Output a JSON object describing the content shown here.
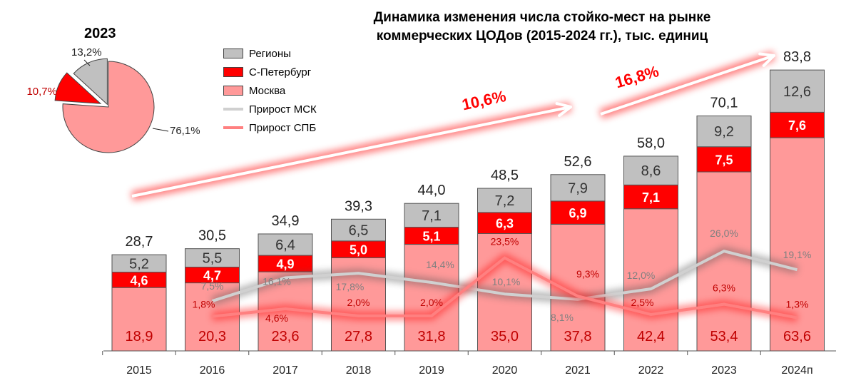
{
  "chart_data": [
    {
      "type": "bar",
      "stacked": true,
      "title": "Динамика изменения числа стойко-мест на рынке коммерческих ЦОДов (2015-2024 гг.), тыс. единиц",
      "categories": [
        "2015",
        "2016",
        "2017",
        "2018",
        "2019",
        "2020",
        "2021",
        "2022",
        "2023",
        "2024п"
      ],
      "series": [
        {
          "name": "Москва",
          "color": "#ff9999",
          "values": [
            18.9,
            20.3,
            23.6,
            27.8,
            31.8,
            35.0,
            37.8,
            42.4,
            53.4,
            63.6
          ],
          "labels": [
            "18,9",
            "20,3",
            "23,6",
            "27,8",
            "31,8",
            "35,0",
            "37,8",
            "42,4",
            "53,4",
            "63,6"
          ]
        },
        {
          "name": "С-Петербург",
          "color": "#ff0000",
          "values": [
            4.6,
            4.7,
            4.9,
            5.0,
            5.1,
            6.3,
            6.9,
            7.1,
            7.5,
            7.6
          ],
          "labels": [
            "4,6",
            "4,7",
            "4,9",
            "5,0",
            "5,1",
            "6,3",
            "6,9",
            "7,1",
            "7,5",
            "7,6"
          ]
        },
        {
          "name": "Регионы",
          "color": "#c0c0c0",
          "values": [
            5.2,
            5.5,
            6.4,
            6.5,
            7.1,
            7.2,
            7.9,
            8.6,
            9.2,
            12.6
          ],
          "labels": [
            "5,2",
            "5,5",
            "6,4",
            "6,5",
            "7,1",
            "7,2",
            "7,9",
            "8,6",
            "9,2",
            "12,6"
          ]
        }
      ],
      "totals": [
        "28,7",
        "30,5",
        "34,9",
        "39,3",
        "44,0",
        "48,5",
        "52,6",
        "58,0",
        "70,1",
        "83,8"
      ],
      "lines": [
        {
          "name": "Прирост МСК",
          "color": "#d0d0d0",
          "values": [
            null,
            7.5,
            16.1,
            17.8,
            14.4,
            10.1,
            8.1,
            12.0,
            26.0,
            19.1
          ],
          "labels": [
            null,
            "7,5%",
            "16,1%",
            "17,8%",
            "14,4%",
            "10,1%",
            "8,1%",
            "12,0%",
            "26,0%",
            "19,1%"
          ]
        },
        {
          "name": "Прирост СПБ",
          "color": "#ff8080",
          "values": [
            null,
            1.8,
            4.6,
            2.0,
            2.0,
            23.5,
            9.3,
            2.5,
            6.3,
            1.3
          ],
          "labels": [
            null,
            "1,8%",
            "4,6%",
            "2,0%",
            "2,0%",
            "23,5%",
            "9,3%",
            "2,5%",
            "6,3%",
            "1,3%"
          ]
        }
      ],
      "annotations": [
        "10,6%",
        "16,8%"
      ],
      "legend": "top-left"
    },
    {
      "type": "pie",
      "title": "2023",
      "slices": [
        {
          "name": "Москва",
          "value": 76.1,
          "label": "76,1%",
          "color": "#ff9999"
        },
        {
          "name": "С-Петербург",
          "value": 10.7,
          "label": "10,7%",
          "color": "#ff0000"
        },
        {
          "name": "Регионы",
          "value": 13.2,
          "label": "13,2%",
          "color": "#c0c0c0"
        }
      ]
    }
  ]
}
